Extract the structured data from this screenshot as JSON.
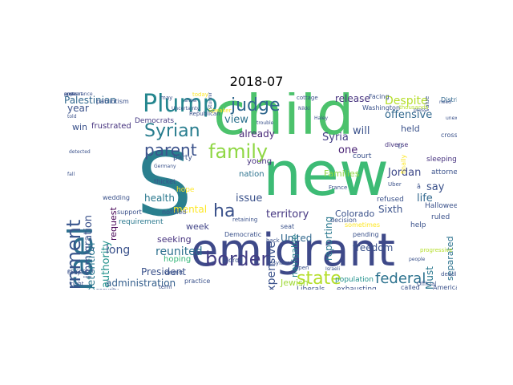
{
  "title": "2018-07",
  "words": [
    {
      "text": "child",
      "color": "#4cc26c",
      "rotate": false
    },
    {
      "text": "new",
      "color": "#3dbb75",
      "rotate": false
    },
    {
      "text": "S",
      "color": "#2a7f8e",
      "rotate": false
    },
    {
      "text": "emigrant",
      "color": "#3e4989",
      "rotate": false
    },
    {
      "text": "Israel",
      "color": "#2d6f8e",
      "rotate": true
    },
    {
      "text": "government",
      "color": "#39558c",
      "rotate": true
    },
    {
      "text": "Plump",
      "color": "#24868e",
      "rotate": false
    },
    {
      "text": "family",
      "color": "#8fd744",
      "rotate": false
    },
    {
      "text": "Syrian",
      "color": "#287d8e",
      "rotate": false
    },
    {
      "text": "parent",
      "color": "#3b528b",
      "rotate": false
    },
    {
      "text": "judge",
      "color": "#31688e",
      "rotate": false
    },
    {
      "text": "border",
      "color": "#433e85",
      "rotate": false
    },
    {
      "text": "state",
      "color": "#b5de2b",
      "rotate": false
    },
    {
      "text": "federal",
      "color": "#2c728e",
      "rotate": false
    },
    {
      "text": "ha",
      "color": "#3b528b",
      "rotate": false
    },
    {
      "text": "Palestinian",
      "color": "#31688e",
      "rotate": false
    },
    {
      "text": "immigration",
      "color": "#3b528b",
      "rotate": true
    },
    {
      "text": "detention",
      "color": "#2a788e",
      "rotate": true
    },
    {
      "text": "authority",
      "color": "#21918c",
      "rotate": true
    },
    {
      "text": "request",
      "color": "#440154",
      "rotate": true
    },
    {
      "text": "view",
      "color": "#2c728e",
      "rotate": false
    },
    {
      "text": "already",
      "color": "#482878",
      "rotate": false
    },
    {
      "text": "young",
      "color": "#46327e",
      "rotate": false
    },
    {
      "text": "nation",
      "color": "#2c728e",
      "rotate": false
    },
    {
      "text": "issue",
      "color": "#3b528b",
      "rotate": false
    },
    {
      "text": "territory",
      "color": "#453781",
      "rotate": false
    },
    {
      "text": "health",
      "color": "#2a788e",
      "rotate": false
    },
    {
      "text": "mental",
      "color": "#fde725",
      "rotate": false
    },
    {
      "text": "week",
      "color": "#414487",
      "rotate": false
    },
    {
      "text": "long",
      "color": "#3b528b",
      "rotate": false
    },
    {
      "text": "seeking",
      "color": "#46327e",
      "rotate": false
    },
    {
      "text": "reunited",
      "color": "#2d708e",
      "rotate": false
    },
    {
      "text": "hoping",
      "color": "#35b779",
      "rotate": false
    },
    {
      "text": "President",
      "color": "#3b528b",
      "rotate": false
    },
    {
      "text": "administration",
      "color": "#355f8d",
      "rotate": false
    },
    {
      "text": "United",
      "color": "#31688e",
      "rotate": false
    },
    {
      "text": "Jewish",
      "color": "#a0da39",
      "rotate": false
    },
    {
      "text": "reporting",
      "color": "#2a788e",
      "rotate": true
    },
    {
      "text": "navigable",
      "color": "#26828e",
      "rotate": true
    },
    {
      "text": "offensive",
      "color": "#31688e",
      "rotate": false
    },
    {
      "text": "Despite",
      "color": "#b5de2b",
      "rotate": false
    },
    {
      "text": "held",
      "color": "#3b528b",
      "rotate": false
    },
    {
      "text": "release",
      "color": "#46327e",
      "rotate": false
    },
    {
      "text": "will",
      "color": "#3b528b",
      "rotate": false
    },
    {
      "text": "one",
      "color": "#482173",
      "rotate": false
    },
    {
      "text": "Syria",
      "color": "#433e85",
      "rotate": false
    },
    {
      "text": "Jordan",
      "color": "#3e4989",
      "rotate": false
    },
    {
      "text": "Families",
      "color": "#90d743",
      "rotate": false
    },
    {
      "text": "freedom",
      "color": "#3b528b",
      "rotate": false
    },
    {
      "text": "separated",
      "color": "#2c728e",
      "rotate": true
    },
    {
      "text": "Canadian",
      "color": "#3e4989",
      "rotate": true
    },
    {
      "text": "say",
      "color": "#3b528b",
      "rotate": false
    },
    {
      "text": "life",
      "color": "#31688e",
      "rotate": false
    },
    {
      "text": "Must",
      "color": "#2a788e",
      "rotate": true
    },
    {
      "text": "Colorado",
      "color": "#3b528b",
      "rotate": false
    },
    {
      "text": "year",
      "color": "#3b528b",
      "rotate": false
    },
    {
      "text": "win",
      "color": "#3b528b",
      "rotate": false
    },
    {
      "text": "frustrated",
      "color": "#46327e",
      "rotate": false
    },
    {
      "text": "Democrats",
      "color": "#443983",
      "rotate": false
    },
    {
      "text": "Liberals",
      "color": "#3b528b",
      "rotate": false
    },
    {
      "text": "exhausting",
      "color": "#3b528b",
      "rotate": false
    },
    {
      "text": "requirement",
      "color": "#2a788e",
      "rotate": false
    },
    {
      "text": "ruled",
      "color": "#3b528b",
      "rotate": false
    },
    {
      "text": "help",
      "color": "#3b528b",
      "rotate": false
    },
    {
      "text": "attorney",
      "color": "#3b528b",
      "rotate": false
    },
    {
      "text": "sleeping",
      "color": "#46327e",
      "rotate": false
    },
    {
      "text": "refused",
      "color": "#3b528b",
      "rotate": false
    },
    {
      "text": "population",
      "color": "#21918c",
      "rotate": false
    },
    {
      "text": "called",
      "color": "#3b528b",
      "rotate": false
    },
    {
      "text": "Americans",
      "color": "#3b528b",
      "rotate": false
    },
    {
      "text": "court",
      "color": "#3b528b",
      "rotate": false
    },
    {
      "text": "diverse",
      "color": "#46327e",
      "rotate": false
    },
    {
      "text": "Washington",
      "color": "#3b528b",
      "rotate": false
    },
    {
      "text": "Facing",
      "color": "#3b528b",
      "rotate": false
    },
    {
      "text": "District",
      "color": "#31688e",
      "rotate": false
    },
    {
      "text": "cross",
      "color": "#3b528b",
      "rotate": false
    },
    {
      "text": "party",
      "color": "#3b528b",
      "rotate": false
    },
    {
      "text": "thicket",
      "color": "#3b528b",
      "rotate": false
    },
    {
      "text": "hope",
      "color": "#fde725",
      "rotate": false
    },
    {
      "text": "retaining",
      "color": "#3b528b",
      "rotate": false
    },
    {
      "text": "Democratic",
      "color": "#3b528b",
      "rotate": false
    },
    {
      "text": "Soros",
      "color": "#3b528b",
      "rotate": false
    },
    {
      "text": "practice",
      "color": "#3b528b",
      "rotate": false
    },
    {
      "text": "sometimes",
      "color": "#fde725",
      "rotate": false
    },
    {
      "text": "pending",
      "color": "#3b528b",
      "rotate": false
    },
    {
      "text": "seat",
      "color": "#3b528b",
      "rotate": false
    },
    {
      "text": "open",
      "color": "#3b528b",
      "rotate": false
    },
    {
      "text": "asylum",
      "color": "#3b528b",
      "rotate": false
    },
    {
      "text": "wedding",
      "color": "#3b528b",
      "rotate": false
    },
    {
      "text": "desert",
      "color": "#3b528b",
      "rotate": false
    },
    {
      "text": "couple",
      "color": "#3b528b",
      "rotate": false
    },
    {
      "text": "support",
      "color": "#3b528b",
      "rotate": false
    },
    {
      "text": "notified",
      "color": "#3b528b",
      "rotate": false
    },
    {
      "text": "right",
      "color": "#3b528b",
      "rotate": false
    },
    {
      "text": "epicenter",
      "color": "#3b528b",
      "rotate": false
    },
    {
      "text": "patriotism",
      "color": "#3b528b",
      "rotate": false
    },
    {
      "text": "cottage",
      "color": "#3b528b",
      "rotate": false
    },
    {
      "text": "progressive",
      "color": "#b5de2b",
      "rotate": false
    },
    {
      "text": "back",
      "color": "#3b528b",
      "rotate": false
    },
    {
      "text": "France",
      "color": "#3b528b",
      "rotate": false
    },
    {
      "text": "decision",
      "color": "#3b528b",
      "rotate": false
    },
    {
      "text": "Halloween",
      "color": "#3b528b",
      "rotate": false
    },
    {
      "text": "Sixth",
      "color": "#3b528b",
      "rotate": false
    },
    {
      "text": "expensive",
      "color": "#3b528b",
      "rotate": true
    },
    {
      "text": "â",
      "color": "#3b528b",
      "rotate": false
    },
    {
      "text": "U",
      "color": "#3b528b",
      "rotate": false
    },
    {
      "text": "finally",
      "color": "#fde725",
      "rotate": true
    },
    {
      "text": "value",
      "color": "#3b528b",
      "rotate": true
    },
    {
      "text": "may",
      "color": "#3b528b",
      "rotate": false
    },
    {
      "text": "today",
      "color": "#fde725",
      "rotate": false
    },
    {
      "text": "Republican",
      "color": "#3b528b",
      "rotate": false
    },
    {
      "text": "Speaker",
      "color": "#fde725",
      "rotate": false
    },
    {
      "text": "security",
      "color": "#3b528b",
      "rotate": false
    },
    {
      "text": "term",
      "color": "#3b528b",
      "rotate": false
    },
    {
      "text": "Official",
      "color": "#3b528b",
      "rotate": false
    },
    {
      "text": "thousands",
      "color": "#b5de2b",
      "rotate": false
    },
    {
      "text": "deadline",
      "color": "#3b528b",
      "rotate": false
    },
    {
      "text": "Uber",
      "color": "#3b528b",
      "rotate": false
    },
    {
      "text": "need",
      "color": "#3b528b",
      "rotate": false
    },
    {
      "text": "press",
      "color": "#3b528b",
      "rotate": false
    },
    {
      "text": "stunning",
      "color": "#3b528b",
      "rotate": true
    },
    {
      "text": "Uncertainty",
      "color": "#3b528b",
      "rotate": false
    },
    {
      "text": "Nikki",
      "color": "#3b528b",
      "rotate": false
    },
    {
      "text": "Haley",
      "color": "#3b528b",
      "rotate": false
    },
    {
      "text": "Israeli",
      "color": "#3b528b",
      "rotate": false
    },
    {
      "text": "people",
      "color": "#3b528b",
      "rotate": false
    },
    {
      "text": "show",
      "color": "#3b528b",
      "rotate": false
    },
    {
      "text": "told",
      "color": "#3b528b",
      "rotate": false
    },
    {
      "text": "detected",
      "color": "#3b528b",
      "rotate": false
    },
    {
      "text": "trouble",
      "color": "#3b528b",
      "rotate": false
    },
    {
      "text": "unexpected",
      "color": "#3b528b",
      "rotate": false
    },
    {
      "text": "fall",
      "color": "#3b528b",
      "rotate": false
    },
    {
      "text": "Germany",
      "color": "#3b528b",
      "rotate": false
    },
    {
      "text": "cost",
      "color": "#3b528b",
      "rotate": false
    },
    {
      "text": "appearance",
      "color": "#3b528b",
      "rotate": false
    },
    {
      "text": "quite",
      "color": "#3b528b",
      "rotate": false
    },
    {
      "text": "present",
      "color": "#3b528b",
      "rotate": false
    }
  ]
}
